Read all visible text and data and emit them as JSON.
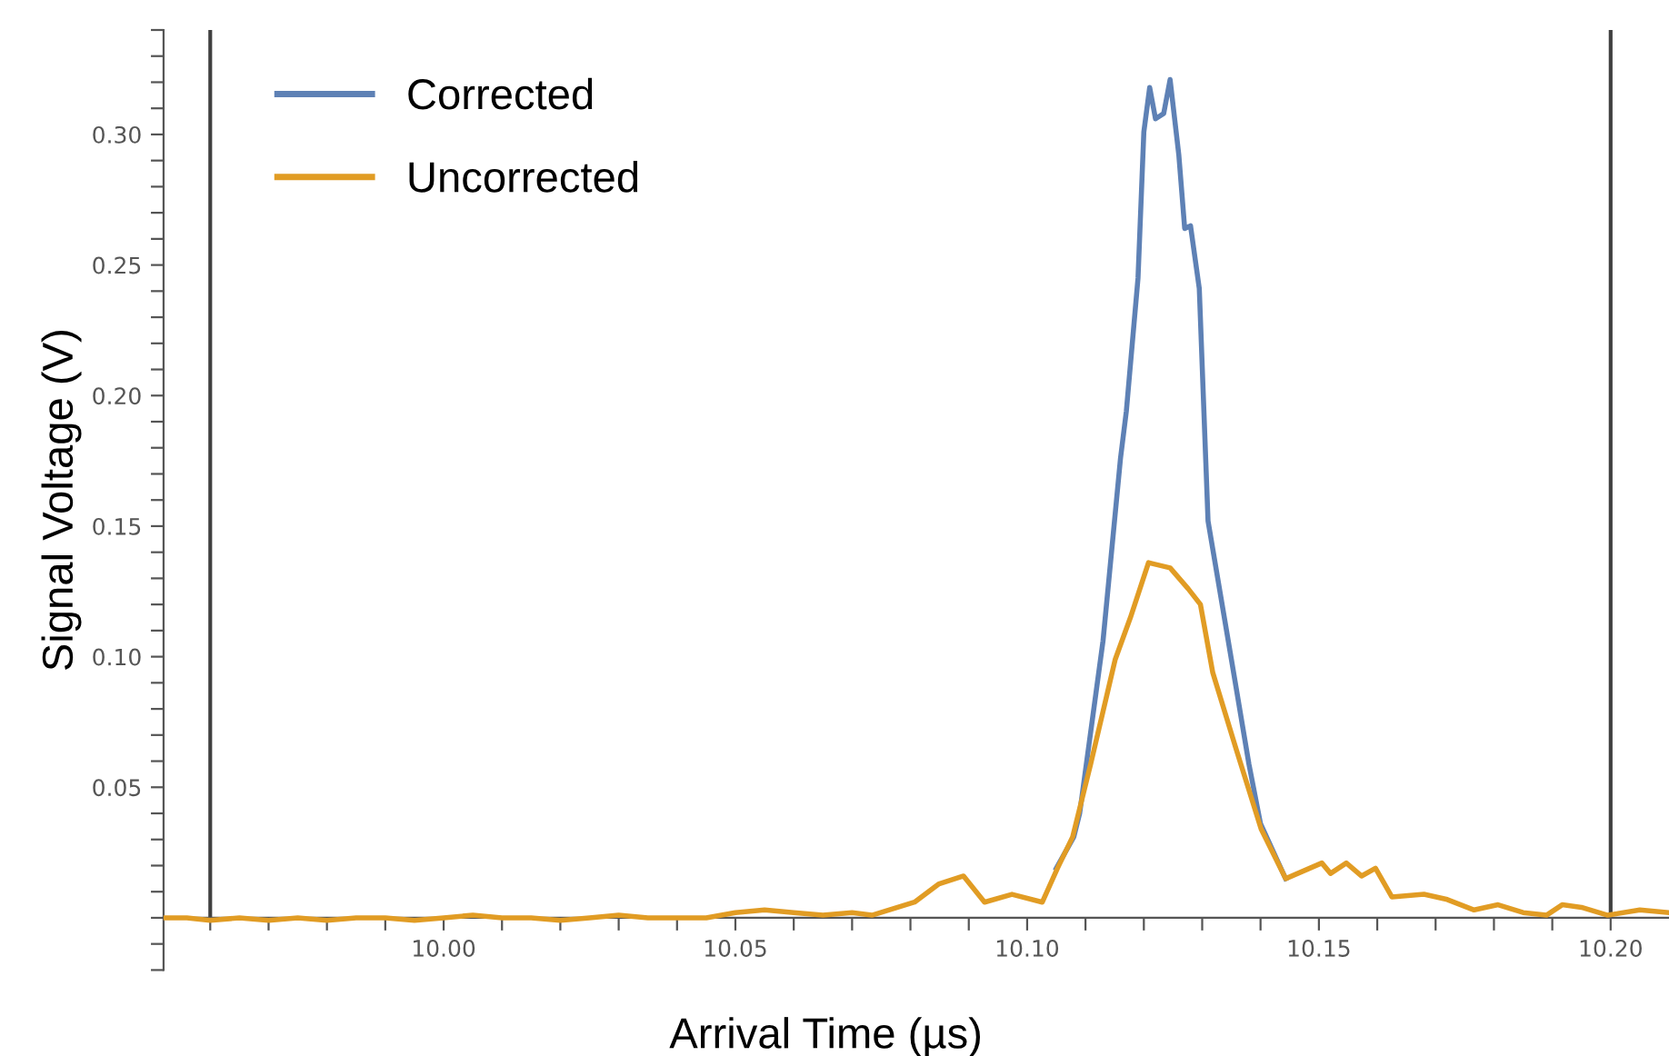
{
  "chart_data": {
    "type": "line",
    "xlabel": "Arrival Time (µs)",
    "ylabel": "Signal Voltage (V)",
    "xlim": [
      9.952,
      10.21
    ],
    "ylim": [
      -0.02,
      0.34
    ],
    "xticks": [
      {
        "value": 9.96,
        "label": null
      },
      {
        "value": 9.97,
        "label": null
      },
      {
        "value": 9.98,
        "label": null
      },
      {
        "value": 9.99,
        "label": null
      },
      {
        "value": 10.0,
        "label": "10.00"
      },
      {
        "value": 10.01,
        "label": null
      },
      {
        "value": 10.02,
        "label": null
      },
      {
        "value": 10.03,
        "label": null
      },
      {
        "value": 10.04,
        "label": null
      },
      {
        "value": 10.05,
        "label": "10.05"
      },
      {
        "value": 10.06,
        "label": null
      },
      {
        "value": 10.07,
        "label": null
      },
      {
        "value": 10.08,
        "label": null
      },
      {
        "value": 10.09,
        "label": null
      },
      {
        "value": 10.1,
        "label": "10.10"
      },
      {
        "value": 10.11,
        "label": null
      },
      {
        "value": 10.12,
        "label": null
      },
      {
        "value": 10.13,
        "label": null
      },
      {
        "value": 10.14,
        "label": null
      },
      {
        "value": 10.15,
        "label": "10.15"
      },
      {
        "value": 10.16,
        "label": null
      },
      {
        "value": 10.17,
        "label": null
      },
      {
        "value": 10.18,
        "label": null
      },
      {
        "value": 10.19,
        "label": null
      },
      {
        "value": 10.2,
        "label": "10.20"
      }
    ],
    "yticks": [
      {
        "value": -0.02,
        "label": null
      },
      {
        "value": -0.01,
        "label": null
      },
      {
        "value": 0,
        "label": null
      },
      {
        "value": 0.01,
        "label": null
      },
      {
        "value": 0.02,
        "label": null
      },
      {
        "value": 0.03,
        "label": null
      },
      {
        "value": 0.04,
        "label": null
      },
      {
        "value": 0.05,
        "label": "0.05"
      },
      {
        "value": 0.06,
        "label": null
      },
      {
        "value": 0.07,
        "label": null
      },
      {
        "value": 0.08,
        "label": null
      },
      {
        "value": 0.09,
        "label": null
      },
      {
        "value": 0.1,
        "label": "0.10"
      },
      {
        "value": 0.11,
        "label": null
      },
      {
        "value": 0.12,
        "label": null
      },
      {
        "value": 0.13,
        "label": null
      },
      {
        "value": 0.14,
        "label": null
      },
      {
        "value": 0.15,
        "label": "0.15"
      },
      {
        "value": 0.16,
        "label": null
      },
      {
        "value": 0.17,
        "label": null
      },
      {
        "value": 0.18,
        "label": null
      },
      {
        "value": 0.19,
        "label": null
      },
      {
        "value": 0.2,
        "label": "0.20"
      },
      {
        "value": 0.21,
        "label": null
      },
      {
        "value": 0.22,
        "label": null
      },
      {
        "value": 0.23,
        "label": null
      },
      {
        "value": 0.24,
        "label": null
      },
      {
        "value": 0.25,
        "label": "0.25"
      },
      {
        "value": 0.26,
        "label": null
      },
      {
        "value": 0.27,
        "label": null
      },
      {
        "value": 0.28,
        "label": null
      },
      {
        "value": 0.29,
        "label": null
      },
      {
        "value": 0.3,
        "label": "0.30"
      },
      {
        "value": 0.31,
        "label": null
      },
      {
        "value": 0.32,
        "label": null
      },
      {
        "value": 0.33,
        "label": null
      },
      {
        "value": 0.34,
        "label": null
      }
    ],
    "grid": false,
    "legend": "top left",
    "ref_lines": [
      {
        "axis": "x",
        "value": 9.96,
        "color": "#404040"
      },
      {
        "axis": "x",
        "value": 10.2,
        "color": "#404040"
      }
    ],
    "series": [
      {
        "name": "Corrected",
        "color": "#5e81b5",
        "x": [
          10.105,
          10.108,
          10.109,
          10.113,
          10.116,
          10.117,
          10.119,
          10.12,
          10.121,
          10.122,
          10.1234,
          10.1245,
          10.126,
          10.127,
          10.128,
          10.1295,
          10.131,
          10.135,
          10.138,
          10.14,
          10.1443
        ],
        "values": [
          0.019,
          0.031,
          0.04,
          0.106,
          0.176,
          0.194,
          0.245,
          0.301,
          0.318,
          0.306,
          0.308,
          0.321,
          0.292,
          0.264,
          0.265,
          0.241,
          0.152,
          0.099,
          0.059,
          0.036,
          0.015
        ]
      },
      {
        "name": "Uncorrected",
        "color": "#e19c24",
        "x": [
          9.952,
          9.956,
          9.96,
          9.965,
          9.97,
          9.975,
          9.98,
          9.985,
          9.99,
          9.995,
          10.0,
          10.005,
          10.01,
          10.015,
          10.02,
          10.025,
          10.03,
          10.035,
          10.04,
          10.045,
          10.05,
          10.055,
          10.06,
          10.065,
          10.07,
          10.0734,
          10.0807,
          10.0849,
          10.0891,
          10.0927,
          10.0974,
          10.1026,
          10.1052,
          10.1078,
          10.1109,
          10.1151,
          10.1177,
          10.1208,
          10.1245,
          10.1276,
          10.1297,
          10.1318,
          10.1359,
          10.1401,
          10.1443,
          10.1505,
          10.152,
          10.1547,
          10.1573,
          10.1597,
          10.1625,
          10.168,
          10.172,
          10.1766,
          10.1807,
          10.185,
          10.189,
          10.1917,
          10.195,
          10.1995,
          10.205,
          10.21
        ],
        "values": [
          0.0,
          0.0,
          -0.001,
          0.0,
          -0.001,
          0.0,
          -0.001,
          0.0,
          0.0,
          -0.001,
          0.0,
          0.001,
          0.0,
          0.0,
          -0.001,
          0.0,
          0.001,
          0.0,
          0.0,
          0.0,
          0.002,
          0.003,
          0.002,
          0.001,
          0.002,
          0.001,
          0.006,
          0.013,
          0.016,
          0.006,
          0.009,
          0.006,
          0.019,
          0.031,
          0.059,
          0.099,
          0.115,
          0.136,
          0.134,
          0.126,
          0.12,
          0.094,
          0.064,
          0.034,
          0.015,
          0.021,
          0.017,
          0.021,
          0.016,
          0.019,
          0.008,
          0.009,
          0.007,
          0.003,
          0.005,
          0.002,
          0.001,
          0.005,
          0.004,
          0.001,
          0.003,
          0.002
        ]
      }
    ]
  }
}
